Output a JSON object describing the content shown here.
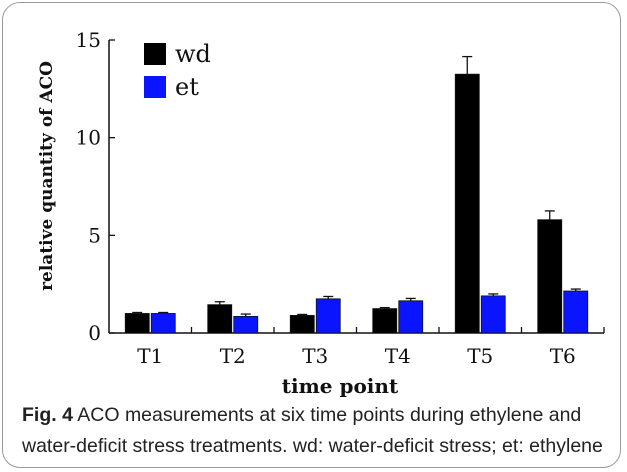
{
  "chart_data": {
    "type": "bar",
    "categories": [
      "T1",
      "T2",
      "T3",
      "T4",
      "T5",
      "T6"
    ],
    "series": [
      {
        "name": "wd",
        "color": "#000000",
        "values": [
          1.0,
          1.45,
          0.9,
          1.25,
          13.25,
          5.8
        ],
        "errors": [
          0.05,
          0.15,
          0.05,
          0.05,
          0.9,
          0.45
        ]
      },
      {
        "name": "et",
        "color": "#0a14ff",
        "values": [
          1.0,
          0.85,
          1.75,
          1.65,
          1.9,
          2.15
        ],
        "errors": [
          0.05,
          0.12,
          0.12,
          0.12,
          0.1,
          0.1
        ]
      }
    ],
    "xlabel": "time point",
    "ylabel": "relative quantity of ACO",
    "ylim": [
      0,
      15
    ],
    "yticks": [
      "0",
      "5",
      "10",
      "15"
    ],
    "legend_position": "top-left",
    "grid": false
  },
  "caption": {
    "label": "Fig. 4",
    "text": " ACO measurements at six time points during ethylene and water-deficit stress treatments. wd: water-deficit stress; et: ethylene"
  }
}
